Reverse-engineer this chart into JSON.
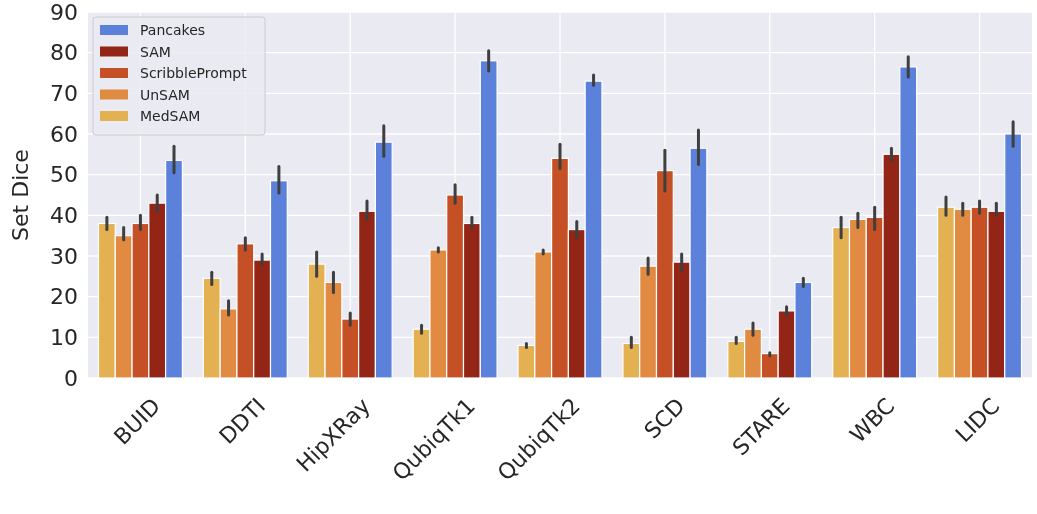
{
  "chart_data": {
    "type": "bar",
    "ylabel": "Set Dice",
    "categories": [
      "BUID",
      "DDTI",
      "HipXRay",
      "QubiqTk1",
      "QubiqTk2",
      "SCD",
      "STARE",
      "WBC",
      "LIDC"
    ],
    "series": [
      {
        "name": "MedSAM",
        "color": "#e3b052",
        "values": [
          38,
          24.5,
          28,
          12,
          8,
          8.5,
          9,
          37,
          42
        ],
        "errors": [
          [
            36.5,
            39.5
          ],
          [
            23,
            26
          ],
          [
            25,
            31
          ],
          [
            11,
            13
          ],
          [
            7.5,
            8.5
          ],
          [
            7.5,
            10
          ],
          [
            8.5,
            10
          ],
          [
            34.5,
            39.5
          ],
          [
            40,
            44.5
          ]
        ]
      },
      {
        "name": "UnSAM",
        "color": "#e08a42",
        "values": [
          35,
          17,
          23.5,
          31.5,
          31,
          27.5,
          12,
          39,
          41.5
        ],
        "errors": [
          [
            34,
            37
          ],
          [
            15.5,
            19
          ],
          [
            21,
            26
          ],
          [
            31,
            32
          ],
          [
            30.5,
            31.5
          ],
          [
            25.5,
            29.5
          ],
          [
            10.5,
            13.5
          ],
          [
            37,
            40.5
          ],
          [
            40,
            43
          ]
        ]
      },
      {
        "name": "ScribblePrompt",
        "color": "#c65026",
        "values": [
          38,
          33,
          14.5,
          45,
          54,
          51,
          6,
          39.5,
          42
        ],
        "errors": [
          [
            36.5,
            40
          ],
          [
            31.5,
            34.5
          ],
          [
            13,
            16
          ],
          [
            43,
            47.5
          ],
          [
            51.5,
            57.5
          ],
          [
            46,
            56
          ],
          [
            5.5,
            6.2
          ],
          [
            36.5,
            42
          ],
          [
            40.5,
            43.5
          ]
        ]
      },
      {
        "name": "SAM",
        "color": "#922515",
        "values": [
          43,
          29,
          41,
          38,
          36.5,
          28.5,
          16.5,
          55,
          41
        ],
        "errors": [
          [
            41,
            45
          ],
          [
            28,
            30.5
          ],
          [
            39,
            43.5
          ],
          [
            37,
            39.5
          ],
          [
            34.5,
            38.5
          ],
          [
            26.5,
            30.5
          ],
          [
            15.5,
            17.5
          ],
          [
            53.5,
            56.5
          ],
          [
            40,
            43
          ]
        ]
      },
      {
        "name": "Pancakes",
        "color": "#5b81db",
        "values": [
          53.5,
          48.5,
          58,
          78,
          73,
          56.5,
          23.5,
          76.5,
          60
        ],
        "errors": [
          [
            50.5,
            57
          ],
          [
            45.5,
            52
          ],
          [
            54.5,
            62
          ],
          [
            75.5,
            80.5
          ],
          [
            72,
            74.5
          ],
          [
            52.5,
            61
          ],
          [
            22.5,
            24.5
          ],
          [
            74,
            79
          ],
          [
            57,
            63
          ]
        ]
      }
    ],
    "ylim": [
      0,
      90
    ],
    "yticks": [
      0,
      10,
      20,
      30,
      40,
      50,
      60,
      70,
      80,
      90
    ],
    "grid": true,
    "legend": "top left"
  }
}
